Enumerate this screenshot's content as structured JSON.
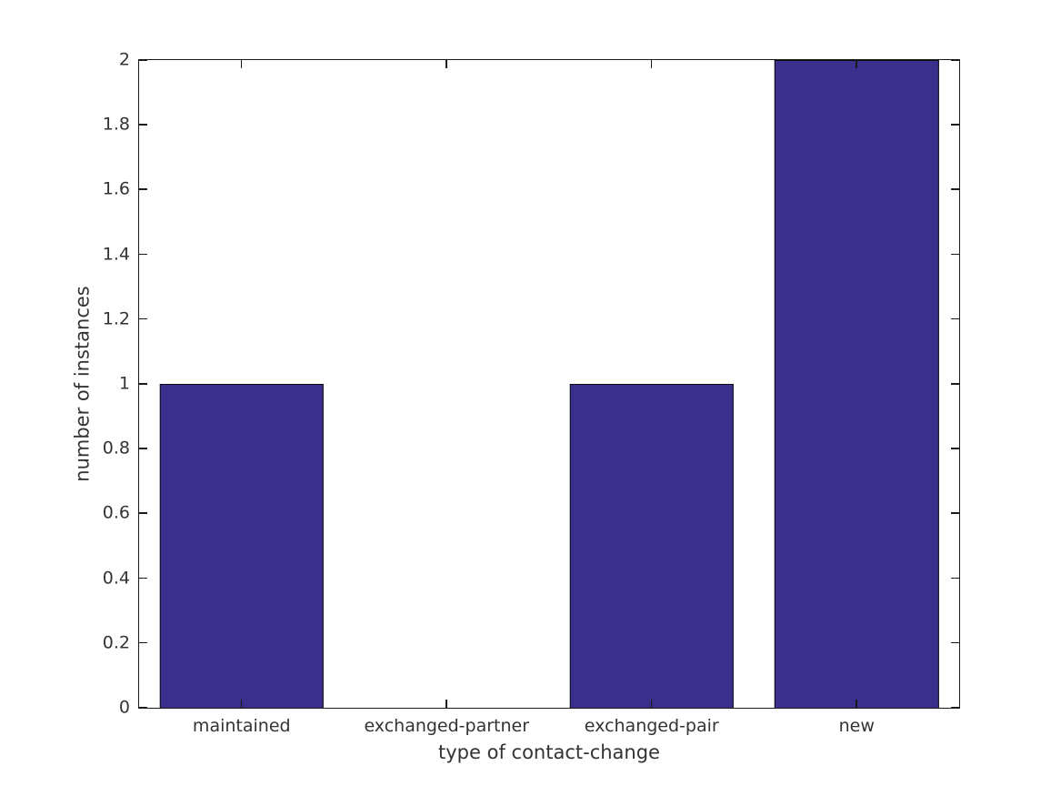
{
  "figure": {
    "background_color": "#ffffff",
    "axis_color": "#1a1a1a",
    "text_color": "#333333"
  },
  "chart_data": {
    "type": "bar",
    "title": "",
    "categories": [
      "maintained",
      "exchanged-partner",
      "exchanged-pair",
      "new"
    ],
    "values": [
      1,
      0,
      1,
      2
    ],
    "xlabel": "type of contact-change",
    "ylabel": "number of instances",
    "ylim": [
      0,
      2
    ],
    "ytick_values": [
      0,
      0.2,
      0.4,
      0.6,
      0.8,
      1,
      1.2,
      1.4,
      1.6,
      1.8,
      2
    ],
    "ytick_labels": [
      "0",
      "0.2",
      "0.4",
      "0.6",
      "0.8",
      "1",
      "1.2",
      "1.4",
      "1.6",
      "1.8",
      "2"
    ],
    "bar_color": "#3a2f8d",
    "bar_edge_color": "#0d0d0d",
    "bar_width_fraction": 0.8,
    "grid": false,
    "legend": "none",
    "tick_style": "inward, mirrored on top and right (box on)"
  }
}
